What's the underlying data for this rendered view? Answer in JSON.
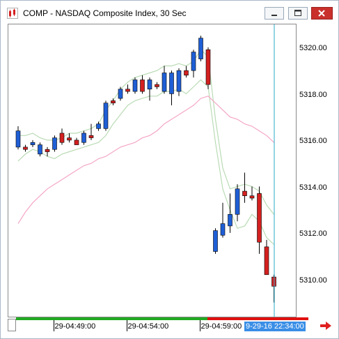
{
  "window": {
    "title": "COMP - NASDAQ Composite Index, 30 Sec",
    "icon": "chart-app-icon",
    "buttons": [
      "minimize-icon",
      "restore-icon",
      "close-icon"
    ],
    "close_color": "#c9302c"
  },
  "cursor_time_label": "9-29-16 22:34:00",
  "chart_data": {
    "type": "candlestick",
    "symbol": "COMP",
    "interval": "30 Sec",
    "y_axis": {
      "position": "right",
      "ylim": [
        5309.0,
        5321.0
      ],
      "ticks": [
        5320.0,
        5318.0,
        5316.0,
        5314.0,
        5312.0,
        5310.0
      ],
      "tick_labels": [
        "5320.00",
        "5318.00",
        "5316.00",
        "5314.00",
        "5312.00",
        "5310.00"
      ]
    },
    "x_axis": {
      "tick_labels": [
        "29-04:49:00",
        "29-04:54:00",
        "29-04:59:00"
      ],
      "tick_index": [
        5,
        15,
        25
      ]
    },
    "up_color": "#1f5fd6",
    "down_color": "#d42020",
    "candles": [
      {
        "o": 5315.8,
        "h": 5316.7,
        "l": 5315.7,
        "c": 5316.5
      },
      {
        "o": 5315.8,
        "h": 5315.9,
        "l": 5315.6,
        "c": 5315.7
      },
      {
        "o": 5315.9,
        "h": 5316.1,
        "l": 5315.8,
        "c": 5316.0
      },
      {
        "o": 5315.5,
        "h": 5316.0,
        "l": 5315.4,
        "c": 5315.9
      },
      {
        "o": 5315.7,
        "h": 5315.8,
        "l": 5315.4,
        "c": 5315.6
      },
      {
        "o": 5315.7,
        "h": 5316.3,
        "l": 5315.6,
        "c": 5316.2
      },
      {
        "o": 5316.4,
        "h": 5316.6,
        "l": 5315.9,
        "c": 5316.0
      },
      {
        "o": 5316.2,
        "h": 5316.4,
        "l": 5316.0,
        "c": 5316.1
      },
      {
        "o": 5316.1,
        "h": 5316.2,
        "l": 5315.9,
        "c": 5315.9
      },
      {
        "o": 5316.0,
        "h": 5316.5,
        "l": 5315.9,
        "c": 5316.4
      },
      {
        "o": 5316.3,
        "h": 5316.8,
        "l": 5316.1,
        "c": 5316.2
      },
      {
        "o": 5316.6,
        "h": 5316.9,
        "l": 5316.5,
        "c": 5316.8
      },
      {
        "o": 5316.6,
        "h": 5317.8,
        "l": 5316.5,
        "c": 5317.7
      },
      {
        "o": 5317.8,
        "h": 5317.9,
        "l": 5317.6,
        "c": 5317.7
      },
      {
        "o": 5317.9,
        "h": 5318.4,
        "l": 5317.8,
        "c": 5318.3
      },
      {
        "o": 5318.3,
        "h": 5318.5,
        "l": 5318.1,
        "c": 5318.2
      },
      {
        "o": 5318.2,
        "h": 5318.8,
        "l": 5318.1,
        "c": 5318.7
      },
      {
        "o": 5318.7,
        "h": 5318.9,
        "l": 5318.1,
        "c": 5318.2
      },
      {
        "o": 5318.3,
        "h": 5318.8,
        "l": 5317.8,
        "c": 5318.7
      },
      {
        "o": 5318.5,
        "h": 5318.6,
        "l": 5318.3,
        "c": 5318.4
      },
      {
        "o": 5318.2,
        "h": 5319.3,
        "l": 5318.1,
        "c": 5319.0
      },
      {
        "o": 5318.1,
        "h": 5319.1,
        "l": 5317.6,
        "c": 5319.0
      },
      {
        "o": 5318.2,
        "h": 5319.2,
        "l": 5318.0,
        "c": 5319.1
      },
      {
        "o": 5319.1,
        "h": 5319.3,
        "l": 5318.8,
        "c": 5318.9
      },
      {
        "o": 5319.1,
        "h": 5320.0,
        "l": 5318.8,
        "c": 5319.9
      },
      {
        "o": 5319.6,
        "h": 5320.6,
        "l": 5319.5,
        "c": 5320.5
      },
      {
        "o": 5320.0,
        "h": 5320.1,
        "l": 5318.3,
        "c": 5318.5
      },
      {
        "o": 5311.3,
        "h": 5312.3,
        "l": 5311.2,
        "c": 5312.2
      },
      {
        "o": 5312.0,
        "h": 5313.4,
        "l": 5311.9,
        "c": 5312.5
      },
      {
        "o": 5312.4,
        "h": 5313.8,
        "l": 5312.1,
        "c": 5312.9
      },
      {
        "o": 5312.9,
        "h": 5314.2,
        "l": 5312.6,
        "c": 5314.0
      },
      {
        "o": 5313.9,
        "h": 5314.7,
        "l": 5313.4,
        "c": 5313.7
      },
      {
        "o": 5313.7,
        "h": 5314.1,
        "l": 5313.5,
        "c": 5313.6
      },
      {
        "o": 5313.8,
        "h": 5314.1,
        "l": 5311.2,
        "c": 5311.7
      },
      {
        "o": 5311.5,
        "h": 5311.8,
        "l": 5310.3,
        "c": 5310.3
      },
      {
        "o": 5310.2,
        "h": 5310.3,
        "l": 5309.1,
        "c": 5309.8
      }
    ],
    "overlays": [
      {
        "kind": "band-upper",
        "color": "#b9dbb4",
        "values": [
          5316.3,
          5316.3,
          5316.4,
          5316.2,
          5316.1,
          5316.1,
          5316.2,
          5316.4,
          5316.4,
          5316.5,
          5316.6,
          5316.8,
          5317.4,
          5317.8,
          5318.3,
          5318.6,
          5318.8,
          5318.9,
          5319.0,
          5319.1,
          5319.3,
          5319.3,
          5319.4,
          5319.3,
          5319.5,
          5320.0,
          5319.7,
          5317.0,
          5314.9,
          5314.0,
          5314.1,
          5314.2,
          5314.1,
          5313.9,
          5313.3,
          5312.9
        ]
      },
      {
        "kind": "band-lower",
        "color": "#b9dbb4",
        "values": [
          5315.2,
          5315.5,
          5315.7,
          5315.6,
          5315.4,
          5315.3,
          5315.5,
          5315.6,
          5315.7,
          5315.8,
          5315.9,
          5316.0,
          5316.3,
          5316.8,
          5317.2,
          5317.6,
          5317.8,
          5317.9,
          5318.0,
          5318.0,
          5318.2,
          5318.2,
          5318.3,
          5318.1,
          5318.4,
          5318.7,
          5318.4,
          5316.0,
          5314.0,
          5313.1,
          5312.3,
          5312.4,
          5312.9,
          5312.6,
          5311.9,
          5311.6
        ]
      },
      {
        "kind": "moving-average",
        "color": "#f4a6c6",
        "values": [
          5312.5,
          5313.0,
          5313.4,
          5313.7,
          5314.0,
          5314.2,
          5314.4,
          5314.6,
          5314.8,
          5315.0,
          5315.1,
          5315.3,
          5315.4,
          5315.6,
          5315.8,
          5315.9,
          5316.0,
          5316.2,
          5316.3,
          5316.5,
          5316.8,
          5317.0,
          5317.2,
          5317.4,
          5317.6,
          5317.9,
          5318.0,
          5317.7,
          5317.4,
          5317.1,
          5317.0,
          5316.8,
          5316.7,
          5316.5,
          5316.3,
          5316.0
        ]
      }
    ],
    "cursor_index": 35,
    "cursor_color": "#2aa8c9",
    "timeline_bar": {
      "colors": [
        "#22aa22",
        "#e01010"
      ],
      "split_index": 26
    }
  }
}
